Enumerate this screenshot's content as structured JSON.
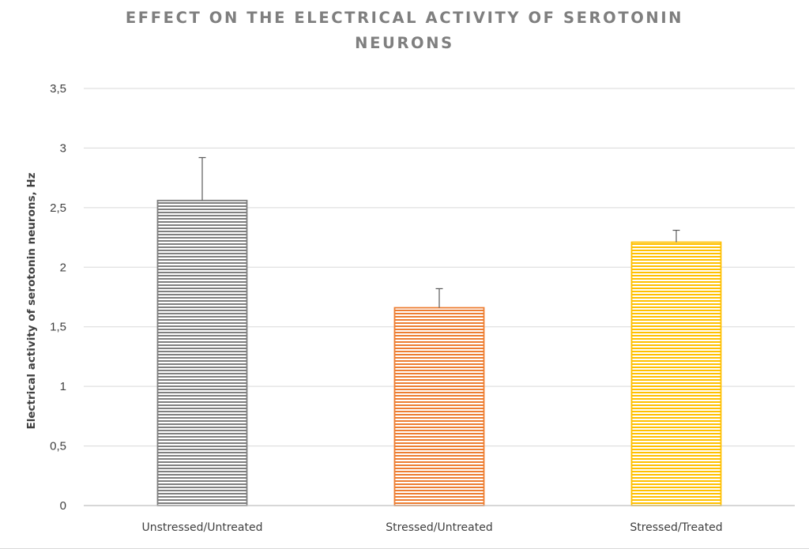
{
  "chart_data": {
    "type": "bar",
    "title": "EFFECT ON THE ELECTRICAL ACTIVITY OF SEROTONIN NEURONS",
    "title_lines": [
      "EFFECT ON THE ELECTRICAL ACTIVITY OF SEROTONIN",
      "NEURONS"
    ],
    "xlabel": "",
    "ylabel": "Electrical activity of serotonin neurons, Hz",
    "categories": [
      "Unstressed/Untreated",
      "Stressed/Untreated",
      "Stressed/Treated"
    ],
    "values": [
      2.56,
      1.66,
      2.21
    ],
    "error_upper": [
      0.36,
      0.16,
      0.1
    ],
    "ylim": [
      0,
      3.5
    ],
    "yticks": [
      0,
      0.5,
      1,
      1.5,
      2,
      2.5,
      3,
      3.5
    ],
    "ytick_labels": [
      "0",
      "0,5",
      "1",
      "1,5",
      "2",
      "2,5",
      "3",
      "3,5"
    ],
    "grid": true,
    "legend": "none",
    "bar_style": "horizontal-stripes",
    "colors": [
      "#7f7f7f",
      "#ed7d31",
      "#ffc000"
    ],
    "title_color": "#7f7f7f",
    "error_bar_color": "#595959"
  }
}
